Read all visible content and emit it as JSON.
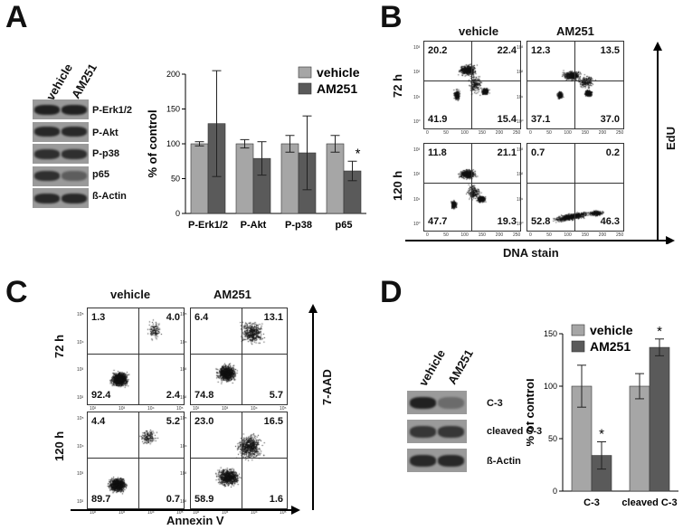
{
  "panelA": {
    "letter": "A",
    "lanes": [
      "vehicle",
      "AM251"
    ],
    "bands": [
      "P-Erk1/2",
      "P-Akt",
      "P-p38",
      "p65",
      "ß-Actin"
    ],
    "chart_data": {
      "type": "bar",
      "categories": [
        "P-Erk1/2",
        "P-Akt",
        "P-p38",
        "p65"
      ],
      "series": [
        {
          "name": "vehicle",
          "values": [
            100,
            100,
            100,
            100
          ],
          "errors": [
            3,
            6,
            12,
            12
          ]
        },
        {
          "name": "AM251",
          "values": [
            129,
            79,
            87,
            61
          ],
          "errors": [
            76,
            24,
            53,
            14
          ]
        }
      ],
      "ylabel": "% of control",
      "ylim": [
        0,
        200
      ],
      "yticks": [
        "0",
        "50",
        "100",
        "150",
        "200"
      ],
      "annotations": [
        "*"
      ],
      "colors": {
        "vehicle": "#a6a6a6",
        "AM251": "#5a5a5a"
      }
    }
  },
  "panelB": {
    "letter": "B",
    "columns": [
      "vehicle",
      "AM251"
    ],
    "rows": [
      "72 h",
      "120 h"
    ],
    "xlabel": "DNA stain",
    "ylabel": "EdU",
    "xticks": [
      "0",
      "50",
      "100",
      "150",
      "200",
      "250"
    ],
    "xunit": "[x10³]",
    "yticks": [
      "10⁰",
      "10¹",
      "10²",
      "10³"
    ],
    "quadrants": [
      [
        "20.2",
        "22.4",
        "41.9",
        "15.4"
      ],
      [
        "12.3",
        "13.5",
        "37.1",
        "37.0"
      ],
      [
        "11.8",
        "21.1",
        "47.7",
        "19.3"
      ],
      [
        "0.7",
        "0.2",
        "52.8",
        "46.3"
      ]
    ]
  },
  "panelC": {
    "letter": "C",
    "columns": [
      "vehicle",
      "AM251"
    ],
    "rows": [
      "72 h",
      "120 h"
    ],
    "xlabel": "Annexin V",
    "ylabel": "7-AAD",
    "xticks": [
      "10²",
      "10³",
      "10⁴",
      "10⁵"
    ],
    "yticks": [
      "10²",
      "10³",
      "10⁴",
      "10⁵"
    ],
    "quadrants": [
      [
        "1.3",
        "4.0",
        "92.4",
        "2.4"
      ],
      [
        "6.4",
        "13.1",
        "74.8",
        "5.7"
      ],
      [
        "4.4",
        "5.2",
        "89.7",
        "0.7"
      ],
      [
        "23.0",
        "16.5",
        "58.9",
        "1.6"
      ]
    ]
  },
  "panelD": {
    "letter": "D",
    "lanes": [
      "vehicle",
      "AM251"
    ],
    "bands": [
      "C-3",
      "cleaved C-3",
      "ß-Actin"
    ],
    "chart_data": {
      "type": "bar",
      "categories": [
        "C-3",
        "cleaved C-3"
      ],
      "series": [
        {
          "name": "vehicle",
          "values": [
            100,
            100
          ],
          "errors": [
            20,
            12
          ]
        },
        {
          "name": "AM251",
          "values": [
            34,
            137
          ],
          "errors": [
            13,
            8
          ]
        }
      ],
      "ylabel": "% of control",
      "ylim": [
        0,
        150
      ],
      "yticks": [
        "0",
        "50",
        "100",
        "150"
      ],
      "annotations": [
        "*",
        "*"
      ],
      "colors": {
        "vehicle": "#a6a6a6",
        "AM251": "#5a5a5a"
      }
    }
  }
}
